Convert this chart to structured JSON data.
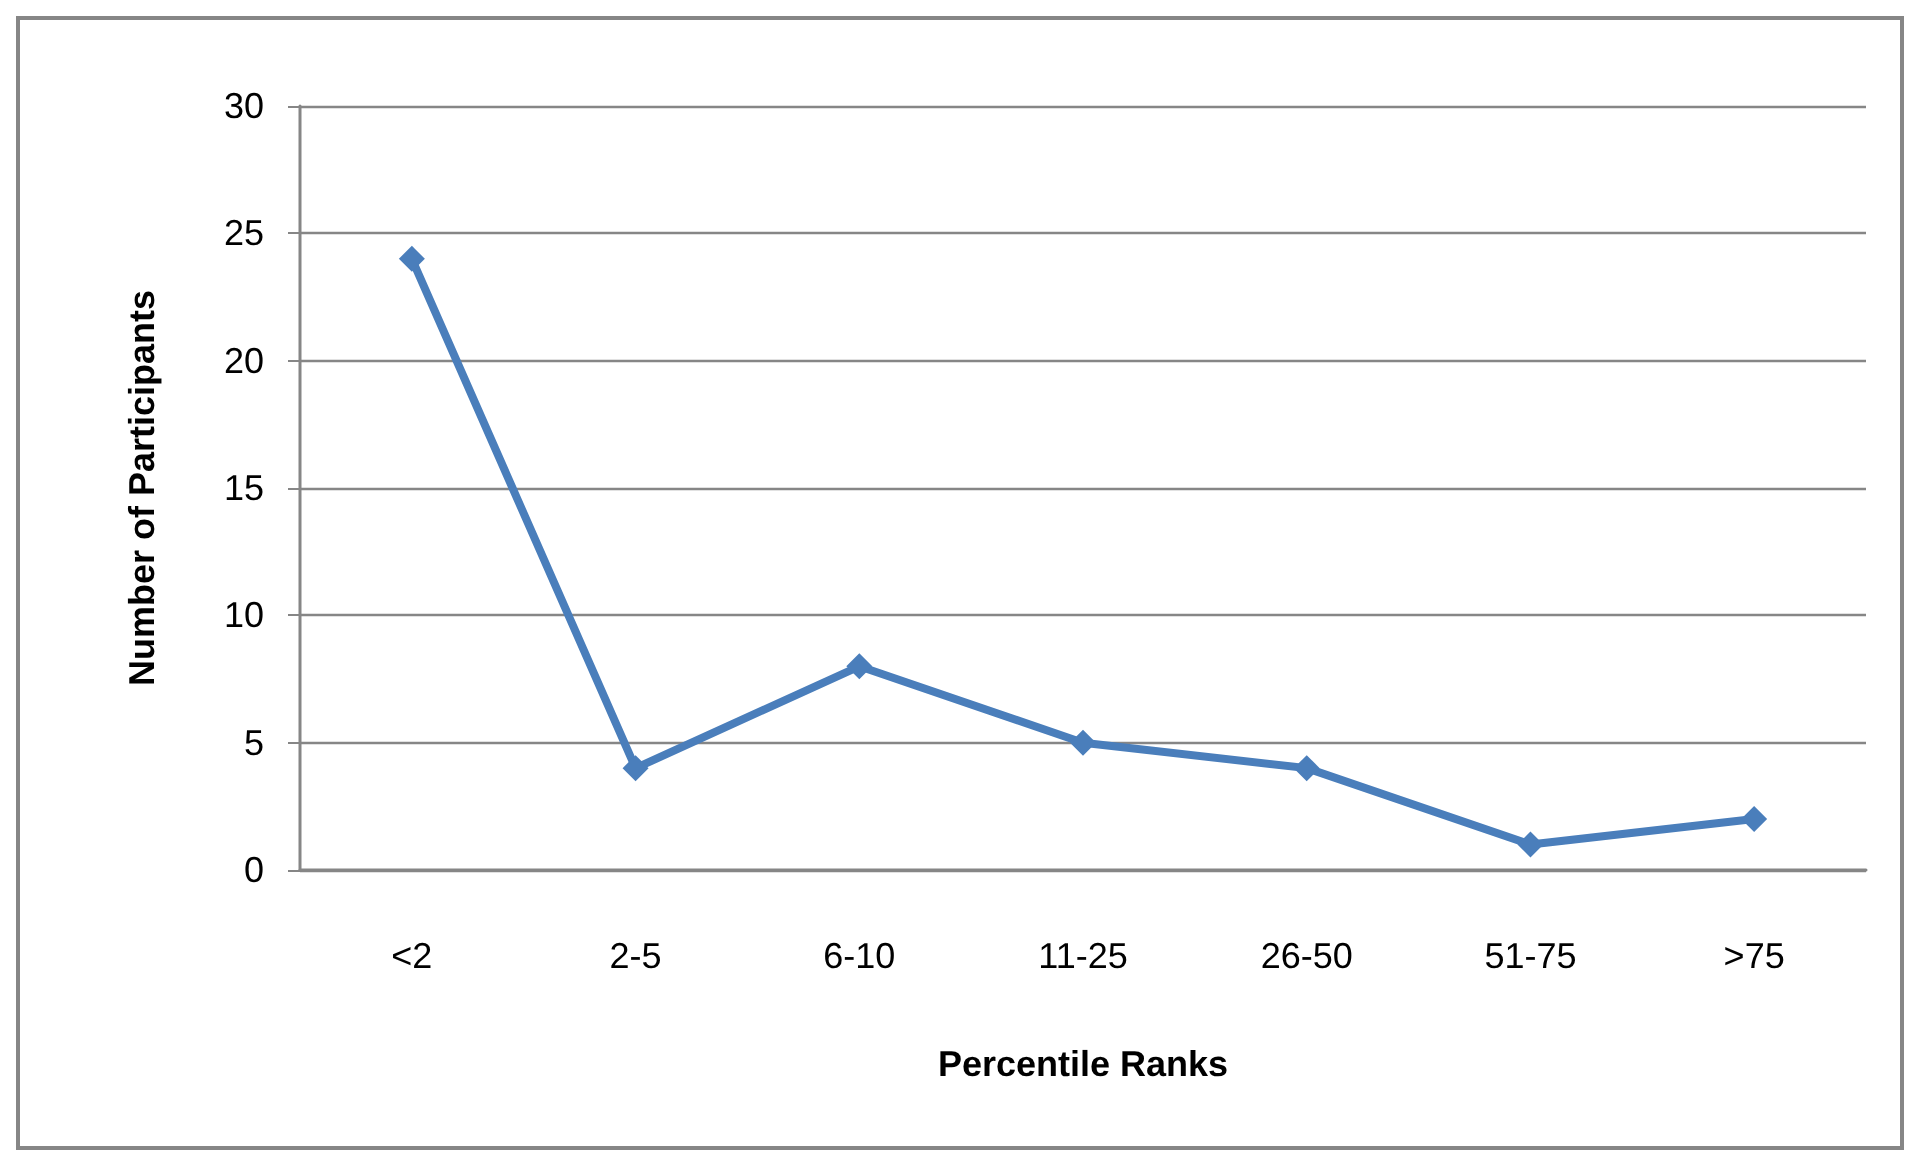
{
  "chart_data": {
    "type": "line",
    "xlabel": "Percentile Ranks",
    "ylabel": "Number of Participants",
    "categories": [
      "<2",
      "2-5",
      "6-10",
      "11-25",
      "26-50",
      "51-75",
      ">75"
    ],
    "series": [
      {
        "color": "#4a7ebb",
        "values": [
          24,
          4,
          8,
          5,
          4,
          1,
          2
        ]
      }
    ],
    "ylim": [
      0,
      30
    ],
    "yticks": [
      0,
      5,
      10,
      15,
      20,
      25,
      30
    ],
    "grid": "y",
    "marker": "diamond",
    "line_style": "solid"
  }
}
